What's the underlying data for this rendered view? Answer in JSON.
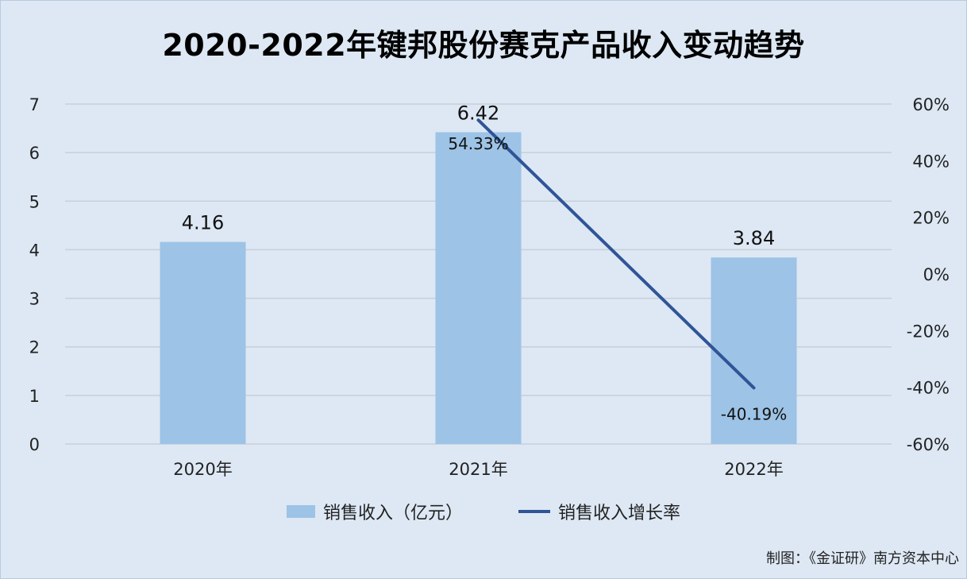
{
  "title": "2020-2022年键邦股份赛克产品收入变动趋势",
  "source": "制图：《金证研》南方资本中心",
  "colors": {
    "bar": "#9dc3e6",
    "line": "#2f5597",
    "grid": "#c8cfd8",
    "background": "#dde8f4"
  },
  "chart_data": {
    "type": "bar",
    "categories": [
      "2020年",
      "2021年",
      "2022年"
    ],
    "series": [
      {
        "name": "销售收入（亿元）",
        "type": "bar",
        "axis": "left",
        "values": [
          4.16,
          6.42,
          3.84
        ],
        "labels": [
          "4.16",
          "6.42",
          "3.84"
        ]
      },
      {
        "name": "销售收入增长率",
        "type": "line",
        "axis": "right",
        "values": [
          null,
          54.33,
          -40.19
        ],
        "labels": [
          "",
          "54.33%",
          "-40.19%"
        ]
      }
    ],
    "y_left": {
      "min": 0,
      "max": 7,
      "ticks": [
        "0",
        "1",
        "2",
        "3",
        "4",
        "5",
        "6",
        "7"
      ]
    },
    "y_right": {
      "min": -60,
      "max": 60,
      "ticks": [
        "-60%",
        "-40%",
        "-20%",
        "0%",
        "20%",
        "40%",
        "60%"
      ]
    },
    "grid": true,
    "legend": "bottom"
  }
}
